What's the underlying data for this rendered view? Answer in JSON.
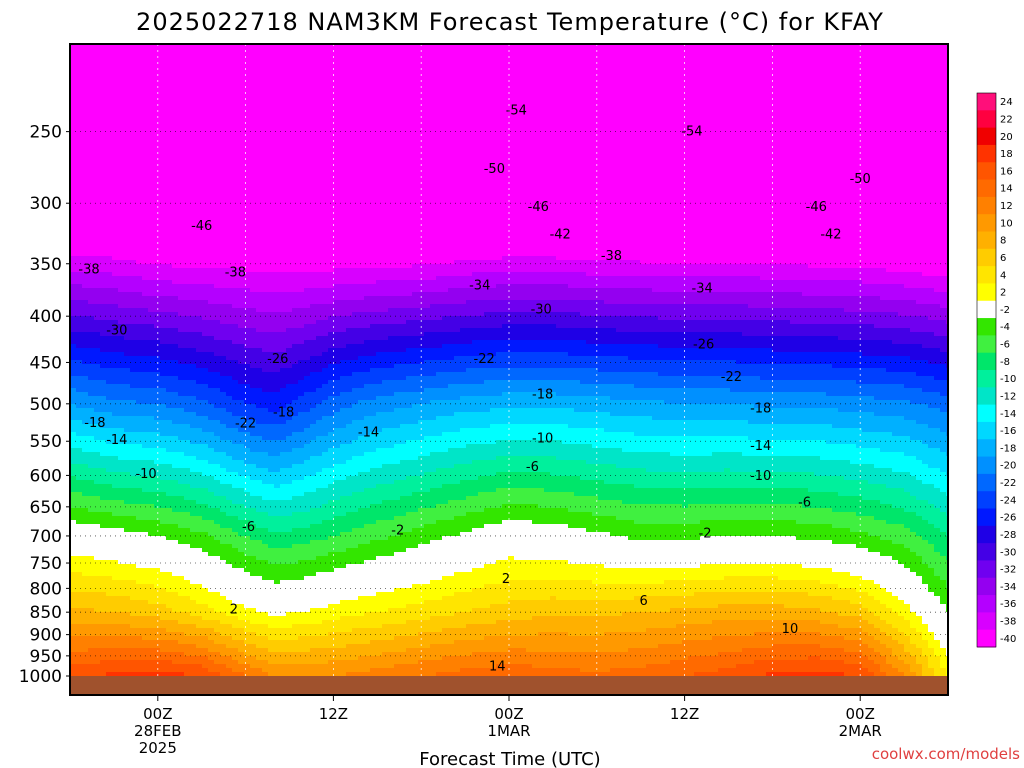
{
  "chart_data": {
    "type": "heatmap",
    "title": "2025022718 NAM3KM Forecast Temperature (°C) for KFAY",
    "xlabel": "Forecast Time (UTC)",
    "ylabel": "",
    "y_scale": "log-pressure",
    "y_inverted": true,
    "ylim_hpa": [
      1000,
      200
    ],
    "y_ticks": [
      250,
      300,
      350,
      400,
      450,
      500,
      550,
      600,
      650,
      700,
      750,
      800,
      850,
      900,
      950,
      1000
    ],
    "xlim_hours": [
      -6,
      54
    ],
    "x_ticks": [
      {
        "hour": 0,
        "lines": [
          "00Z",
          "28FEB",
          "2025"
        ]
      },
      {
        "hour": 12,
        "lines": [
          "12Z"
        ]
      },
      {
        "hour": 24,
        "lines": [
          "00Z",
          "1MAR"
        ]
      },
      {
        "hour": 36,
        "lines": [
          "12Z"
        ]
      },
      {
        "hour": 48,
        "lines": [
          "00Z",
          "2MAR"
        ]
      }
    ],
    "grid": true,
    "colorbar": {
      "position": "right",
      "labels": [
        "24",
        "22",
        "20",
        "18",
        "16",
        "14",
        "12",
        "10",
        "8",
        "6",
        "4",
        "2",
        "-2",
        "-4",
        "-6",
        "-8",
        "-10",
        "-12",
        "-14",
        "-16",
        "-18",
        "-20",
        "-22",
        "-24",
        "-26",
        "-28",
        "-30",
        "-32",
        "-34",
        "-36",
        "-38",
        "-40"
      ],
      "colors": [
        "#ff0f7a",
        "#ff0040",
        "#f00000",
        "#ff3300",
        "#ff5500",
        "#ff6a00",
        "#ff8000",
        "#ff9900",
        "#ffb000",
        "#ffcc00",
        "#ffe500",
        "#ffff00",
        "#ffffff",
        "#33e600",
        "#40f040",
        "#00e66a",
        "#00f09c",
        "#00e5c8",
        "#00ffff",
        "#00d8ff",
        "#00b0ff",
        "#0090ff",
        "#0068ff",
        "#0040ff",
        "#0018ff",
        "#1f00e6",
        "#4400e6",
        "#7000f0",
        "#9400f0",
        "#b400ff",
        "#d800ff",
        "#ff00ff"
      ]
    },
    "surface_color": "#a0522d",
    "profile": {
      "x_hours": [
        -6,
        -3,
        0,
        3,
        6,
        8,
        10,
        12,
        15,
        18,
        21,
        24,
        27,
        30,
        33,
        36,
        39,
        42,
        45,
        48,
        51,
        54
      ],
      "t_1000": [
        17.5,
        18.5,
        19,
        18,
        14,
        12,
        12,
        12,
        13,
        14,
        15,
        15.5,
        15,
        14.5,
        15,
        16,
        17,
        18.5,
        19,
        18,
        12,
        4
      ],
      "t_850": [
        8.5,
        8,
        7,
        5,
        2.5,
        1.5,
        2,
        3,
        4,
        5,
        6,
        7,
        7.5,
        7.5,
        8,
        8.5,
        9,
        9,
        8.5,
        7,
        3,
        -2
      ],
      "t_700": [
        0,
        -1,
        -2,
        -3.5,
        -6,
        -7.5,
        -7,
        -6,
        -4.5,
        -3,
        -1.5,
        0,
        -0.5,
        -1.5,
        -2.5,
        -2.5,
        -2,
        -2,
        -2.5,
        -3.5,
        -5,
        -8
      ],
      "t_500": [
        -18,
        -19.5,
        -20,
        -21.5,
        -24,
        -25,
        -23,
        -21,
        -19,
        -18,
        -17,
        -16.5,
        -16.5,
        -17,
        -17.5,
        -18,
        -18,
        -18.5,
        -18.5,
        -19,
        -19.5,
        -21
      ],
      "t_300": [
        -45,
        -45,
        -46,
        -46,
        -45,
        -45,
        -46,
        -46.5,
        -47,
        -47,
        -46.5,
        -46,
        -46,
        -46.5,
        -46.5,
        -46.5,
        -46.5,
        -46.5,
        -47,
        -47,
        -47.5,
        -48
      ],
      "t_200": [
        -58,
        -57,
        -58,
        -57,
        -56,
        -57,
        -58,
        -57.5,
        -57.5,
        -57.5,
        -57.5,
        -58,
        -58,
        -58,
        -58,
        -57.5,
        -57.5,
        -57.5,
        -57.5,
        -57.5,
        -57.5,
        -57.5
      ]
    },
    "contour_labels": [
      {
        "text": "-54",
        "hour": 24.5,
        "p": 237
      },
      {
        "text": "-54",
        "hour": 36.5,
        "p": 250
      },
      {
        "text": "-50",
        "hour": 23,
        "p": 275
      },
      {
        "text": "-50",
        "hour": 48,
        "p": 282
      },
      {
        "text": "-46",
        "hour": 3,
        "p": 318
      },
      {
        "text": "-46",
        "hour": 26,
        "p": 303
      },
      {
        "text": "-46",
        "hour": 45,
        "p": 303
      },
      {
        "text": "-42",
        "hour": 27.5,
        "p": 325
      },
      {
        "text": "-42",
        "hour": 46,
        "p": 325
      },
      {
        "text": "-38",
        "hour": -4.7,
        "p": 355
      },
      {
        "text": "-38",
        "hour": 5.3,
        "p": 358
      },
      {
        "text": "-38",
        "hour": 31,
        "p": 343
      },
      {
        "text": "-34",
        "hour": 22,
        "p": 370
      },
      {
        "text": "-34",
        "hour": 37.2,
        "p": 373
      },
      {
        "text": "-30",
        "hour": -2.8,
        "p": 415
      },
      {
        "text": "-30",
        "hour": 26.2,
        "p": 393
      },
      {
        "text": "-26",
        "hour": 8.2,
        "p": 446
      },
      {
        "text": "-26",
        "hour": 37.3,
        "p": 430
      },
      {
        "text": "-22",
        "hour": 22.3,
        "p": 446
      },
      {
        "text": "-22",
        "hour": 39.2,
        "p": 467
      },
      {
        "text": "-22",
        "hour": 6,
        "p": 526
      },
      {
        "text": "-18",
        "hour": 8.6,
        "p": 511
      },
      {
        "text": "-18",
        "hour": -4.3,
        "p": 525
      },
      {
        "text": "-18",
        "hour": 26.3,
        "p": 488
      },
      {
        "text": "-18",
        "hour": 41.2,
        "p": 506
      },
      {
        "text": "-14",
        "hour": -2.8,
        "p": 548
      },
      {
        "text": "-14",
        "hour": 14.4,
        "p": 538
      },
      {
        "text": "-14",
        "hour": 41.2,
        "p": 557
      },
      {
        "text": "-10",
        "hour": -0.8,
        "p": 598
      },
      {
        "text": "-10",
        "hour": 26.3,
        "p": 546
      },
      {
        "text": "-10",
        "hour": 41.2,
        "p": 601
      },
      {
        "text": "-6",
        "hour": 6.2,
        "p": 684
      },
      {
        "text": "-6",
        "hour": 25.6,
        "p": 587
      },
      {
        "text": "-6",
        "hour": 44.2,
        "p": 643
      },
      {
        "text": "-2",
        "hour": 16.4,
        "p": 690
      },
      {
        "text": "-2",
        "hour": 37.4,
        "p": 696
      },
      {
        "text": "2",
        "hour": 23.8,
        "p": 781
      },
      {
        "text": "2",
        "hour": 5.2,
        "p": 844
      },
      {
        "text": "6",
        "hour": 33.2,
        "p": 826
      },
      {
        "text": "10",
        "hour": 43.2,
        "p": 887
      },
      {
        "text": "14",
        "hour": 23.2,
        "p": 976
      }
    ]
  },
  "credit": "coolwx.com/models"
}
